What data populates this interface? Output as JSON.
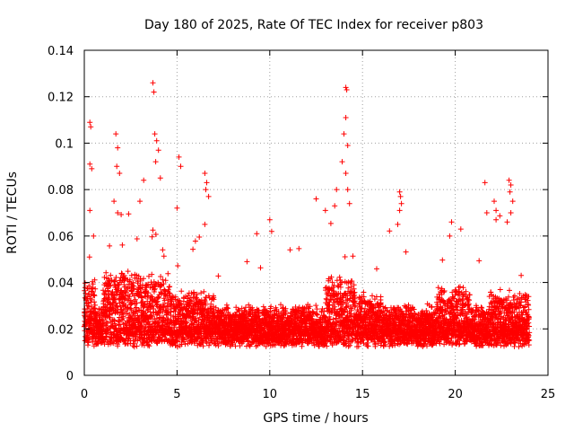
{
  "chart_data": {
    "type": "scatter",
    "title": "Day 180 of 2025, Rate Of TEC Index for receiver p803",
    "xlabel": "GPS time / hours",
    "ylabel": "ROTI / TECUs",
    "xlim": [
      0,
      25
    ],
    "ylim": [
      0,
      0.14
    ],
    "xticks": [
      0,
      5,
      10,
      15,
      20,
      25
    ],
    "yticks": [
      0,
      0.02,
      0.04,
      0.06,
      0.08,
      0.1,
      0.12,
      0.14
    ],
    "xtick_labels": [
      "0",
      "5",
      "10",
      "15",
      "20",
      "25"
    ],
    "ytick_labels": [
      "0",
      "0.02",
      "0.04",
      "0.06",
      "0.08",
      "0.1",
      "0.12",
      "0.14"
    ],
    "grid": true,
    "marker": "+",
    "color": "#ff0000",
    "time_range_hours": [
      0,
      24
    ],
    "typical_baseline": 0.015,
    "outliers": [
      {
        "x": 0.3,
        "y": 0.109
      },
      {
        "x": 0.35,
        "y": 0.107
      },
      {
        "x": 0.3,
        "y": 0.091
      },
      {
        "x": 0.4,
        "y": 0.089
      },
      {
        "x": 0.3,
        "y": 0.071
      },
      {
        "x": 0.5,
        "y": 0.06
      },
      {
        "x": 1.7,
        "y": 0.104
      },
      {
        "x": 1.8,
        "y": 0.098
      },
      {
        "x": 1.75,
        "y": 0.09
      },
      {
        "x": 1.9,
        "y": 0.087
      },
      {
        "x": 1.6,
        "y": 0.075
      },
      {
        "x": 1.8,
        "y": 0.07
      },
      {
        "x": 3.7,
        "y": 0.126
      },
      {
        "x": 3.75,
        "y": 0.122
      },
      {
        "x": 3.8,
        "y": 0.104
      },
      {
        "x": 3.9,
        "y": 0.101
      },
      {
        "x": 4.0,
        "y": 0.097
      },
      {
        "x": 3.85,
        "y": 0.092
      },
      {
        "x": 4.1,
        "y": 0.085
      },
      {
        "x": 3.2,
        "y": 0.084
      },
      {
        "x": 3.0,
        "y": 0.075
      },
      {
        "x": 5.1,
        "y": 0.094
      },
      {
        "x": 5.2,
        "y": 0.09
      },
      {
        "x": 5.0,
        "y": 0.072
      },
      {
        "x": 6.5,
        "y": 0.087
      },
      {
        "x": 6.6,
        "y": 0.083
      },
      {
        "x": 6.55,
        "y": 0.08
      },
      {
        "x": 6.7,
        "y": 0.077
      },
      {
        "x": 6.5,
        "y": 0.065
      },
      {
        "x": 10.0,
        "y": 0.067
      },
      {
        "x": 10.1,
        "y": 0.062
      },
      {
        "x": 9.3,
        "y": 0.061
      },
      {
        "x": 12.5,
        "y": 0.076
      },
      {
        "x": 13.0,
        "y": 0.071
      },
      {
        "x": 13.6,
        "y": 0.08
      },
      {
        "x": 13.5,
        "y": 0.073
      },
      {
        "x": 14.1,
        "y": 0.124
      },
      {
        "x": 14.15,
        "y": 0.123
      },
      {
        "x": 14.1,
        "y": 0.111
      },
      {
        "x": 14.0,
        "y": 0.104
      },
      {
        "x": 14.2,
        "y": 0.099
      },
      {
        "x": 14.1,
        "y": 0.087
      },
      {
        "x": 13.9,
        "y": 0.092
      },
      {
        "x": 14.2,
        "y": 0.08
      },
      {
        "x": 14.3,
        "y": 0.074
      },
      {
        "x": 17.0,
        "y": 0.079
      },
      {
        "x": 17.05,
        "y": 0.077
      },
      {
        "x": 17.1,
        "y": 0.074
      },
      {
        "x": 17.0,
        "y": 0.071
      },
      {
        "x": 16.9,
        "y": 0.065
      },
      {
        "x": 19.8,
        "y": 0.066
      },
      {
        "x": 20.3,
        "y": 0.063
      },
      {
        "x": 19.7,
        "y": 0.06
      },
      {
        "x": 21.6,
        "y": 0.083
      },
      {
        "x": 22.1,
        "y": 0.075
      },
      {
        "x": 22.2,
        "y": 0.071
      },
      {
        "x": 22.2,
        "y": 0.067
      },
      {
        "x": 21.7,
        "y": 0.07
      },
      {
        "x": 22.9,
        "y": 0.084
      },
      {
        "x": 23.0,
        "y": 0.082
      },
      {
        "x": 22.95,
        "y": 0.079
      },
      {
        "x": 23.1,
        "y": 0.075
      },
      {
        "x": 23.0,
        "y": 0.07
      },
      {
        "x": 22.8,
        "y": 0.066
      }
    ]
  }
}
